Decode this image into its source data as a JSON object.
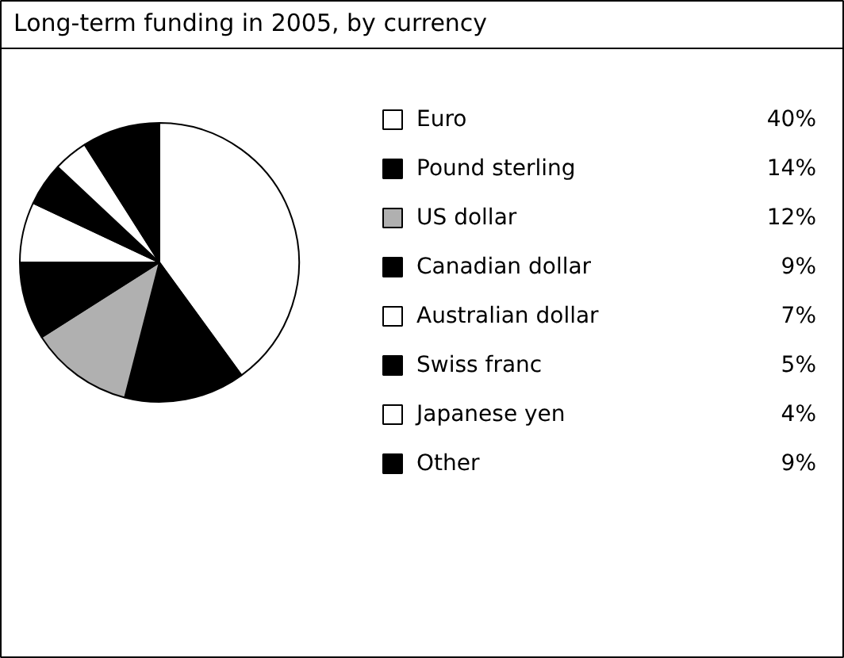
{
  "chart_data": {
    "type": "pie",
    "title": "Long-term funding in 2005, by currency",
    "categories": [
      "Euro",
      "Pound sterling",
      "US dollar",
      "Canadian dollar",
      "Australian dollar",
      "Swiss franc",
      "Japanese yen",
      "Other"
    ],
    "values": [
      40,
      14,
      12,
      9,
      7,
      5,
      4,
      9
    ],
    "colors": [
      "#ffffff",
      "#000000",
      "#b0b0b0",
      "#000000",
      "#ffffff",
      "#000000",
      "#ffffff",
      "#000000"
    ],
    "value_labels": [
      "40%",
      "14%",
      "12%",
      "9%",
      "7%",
      "5%",
      "4%",
      "9%"
    ],
    "legend": "right"
  }
}
